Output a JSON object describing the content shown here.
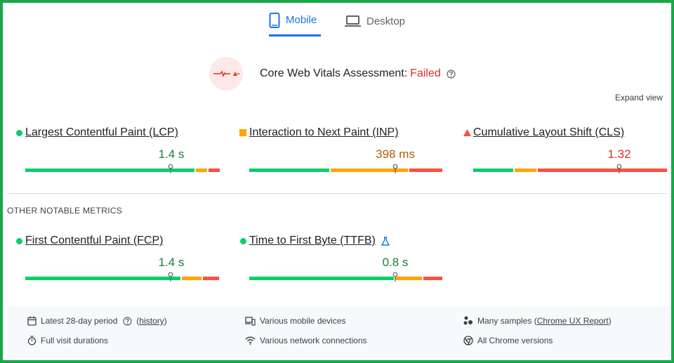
{
  "tabs": [
    {
      "label": "Mobile",
      "active": true,
      "icon": "phone-icon"
    },
    {
      "label": "Desktop",
      "active": false,
      "icon": "laptop-icon"
    }
  ],
  "assessment": {
    "label": "Core Web Vitals Assessment:",
    "status": "Failed",
    "icon": "failed-assessment-icon"
  },
  "expand_label": "Expand view",
  "core_metrics": [
    {
      "name": "Largest Contentful Paint (LCP)",
      "value": "1.4 s",
      "rating": "good",
      "indicator": "green-dot",
      "distribution": [
        0.78,
        0.06,
        0.06
      ]
    },
    {
      "name": "Interaction to Next Paint (INP)",
      "value": "398 ms",
      "rating": "needs-improvement",
      "indicator": "orange-square",
      "distribution": [
        0.41,
        0.4,
        0.17
      ]
    },
    {
      "name": "Cumulative Layout Shift (CLS)",
      "value": "1.32",
      "rating": "poor",
      "indicator": "red-triangle",
      "distribution": [
        0.21,
        0.11,
        0.68
      ]
    }
  ],
  "other_label": "OTHER NOTABLE METRICS",
  "other_metrics": [
    {
      "name": "First Contentful Paint (FCP)",
      "value": "1.4 s",
      "rating": "good",
      "indicator": "green-dot",
      "distribution": [
        0.79,
        0.1,
        0.08
      ]
    },
    {
      "name": "Time to First Byte (TTFB)",
      "value": "0.8 s",
      "rating": "good",
      "indicator": "green-dot",
      "distribution": [
        0.75,
        0.14,
        0.1
      ],
      "experimental": true
    }
  ],
  "footer": {
    "period": "Latest 28-day period",
    "history": "history",
    "visit": "Full visit durations",
    "devices": "Various mobile devices",
    "network": "Various network connections",
    "samples_prefix": "Many samples (",
    "samples_link": "Chrome UX Report",
    "samples_suffix": ")",
    "versions": "All Chrome versions"
  },
  "colors": {
    "good": "#0cce6b",
    "needs_improvement": "#ffa400",
    "poor": "#ff4e42",
    "accent": "#1a73e8",
    "frame": "#1aa64a"
  }
}
